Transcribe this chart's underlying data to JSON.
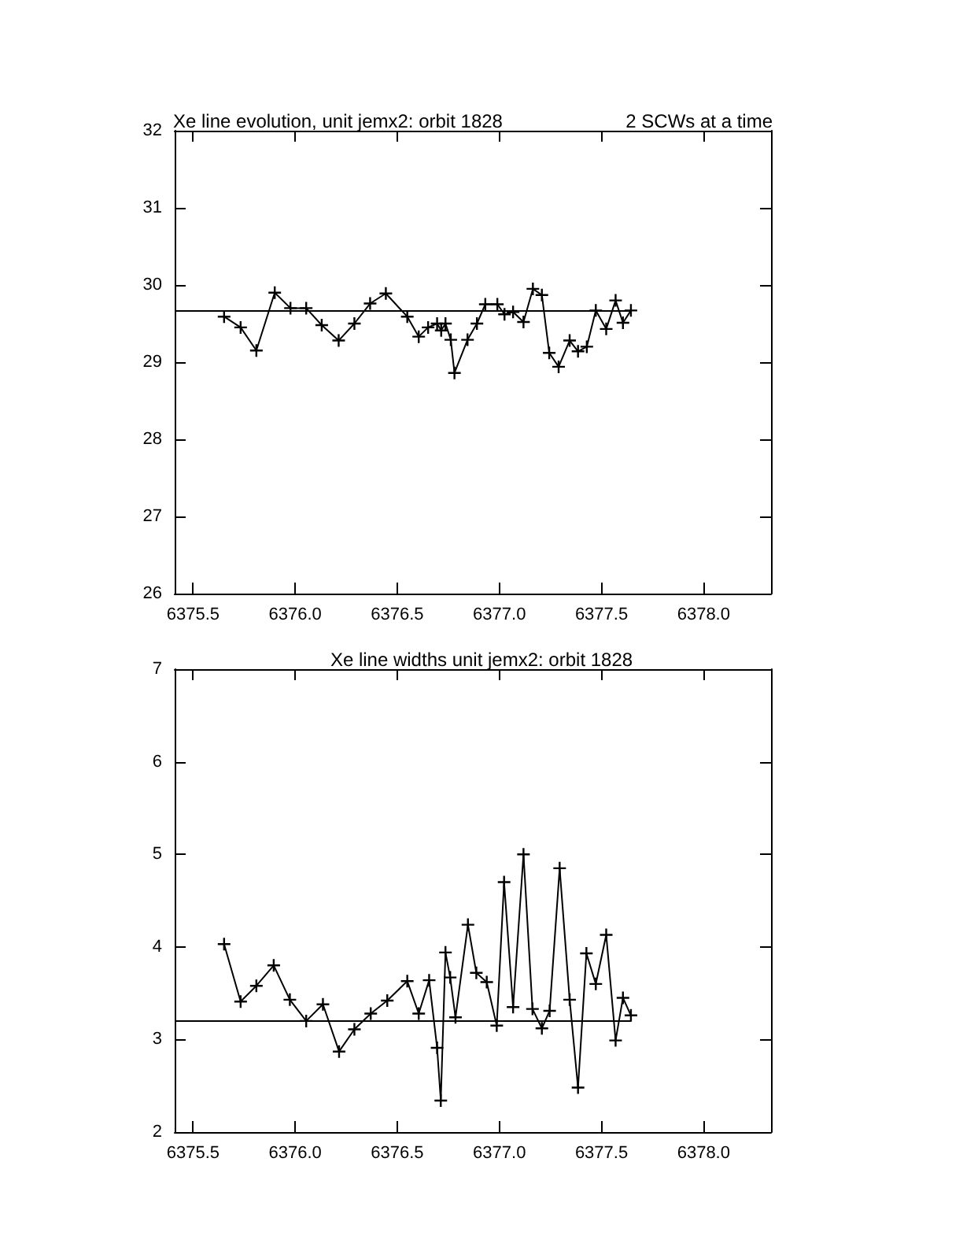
{
  "chart_data": [
    {
      "type": "line",
      "title": "Xe line evolution, unit jemx2: orbit 1828",
      "subtitle": "2 SCWs at a time",
      "marker": "cross",
      "line_style": "solid",
      "x": [
        6375.652,
        6375.733,
        6375.81,
        6375.9,
        6375.977,
        6376.054,
        6376.13,
        6376.213,
        6376.29,
        6376.367,
        6376.444,
        6376.549,
        6376.605,
        6376.651,
        6376.695,
        6376.715,
        6376.736,
        6376.762,
        6376.78,
        6376.844,
        6376.89,
        6376.931,
        6376.99,
        6377.025,
        6377.067,
        6377.118,
        6377.164,
        6377.208,
        6377.244,
        6377.29,
        6377.344,
        6377.385,
        6377.428,
        6377.472,
        6377.523,
        6377.569,
        6377.605,
        6377.644
      ],
      "series": [
        {
          "color": "#000000",
          "values": [
            29.59,
            29.45,
            29.15,
            29.9,
            29.7,
            29.7,
            29.48,
            29.28,
            29.5,
            29.76,
            29.89,
            29.59,
            29.33,
            29.45,
            29.5,
            29.41,
            29.5,
            29.29,
            28.86,
            29.29,
            29.5,
            29.75,
            29.75,
            29.62,
            29.65,
            29.52,
            29.95,
            29.87,
            29.12,
            28.94,
            29.28,
            29.14,
            29.2,
            29.67,
            29.43,
            29.8,
            29.51,
            29.67
          ]
        }
      ],
      "ref_lines": [
        {
          "axis": "y",
          "value": 29.67,
          "color": "#000000"
        }
      ],
      "xlim": [
        6375.41,
        6378.33
      ],
      "xticks": [
        {
          "value": 6375.5,
          "label": "6375.5"
        },
        {
          "value": 6376,
          "label": "6376.0"
        },
        {
          "value": 6376.5,
          "label": "6376.5"
        },
        {
          "value": 6377,
          "label": "6377.0"
        },
        {
          "value": 6377.5,
          "label": "6377.5"
        },
        {
          "value": 6378,
          "label": "6378.0"
        }
      ],
      "ylim": [
        26,
        32
      ],
      "yticks": [
        26,
        27,
        28,
        29,
        30,
        31,
        32
      ]
    },
    {
      "type": "line",
      "title": "Xe line widths unit jemx2: orbit 1828",
      "marker": "cross",
      "line_style": "solid",
      "x": [
        6375.652,
        6375.733,
        6375.81,
        6375.895,
        6375.974,
        6376.054,
        6376.136,
        6376.215,
        6376.29,
        6376.37,
        6376.451,
        6376.549,
        6376.605,
        6376.656,
        6376.695,
        6376.713,
        6376.736,
        6376.759,
        6376.785,
        6376.846,
        6376.887,
        6376.938,
        6376.987,
        6377.023,
        6377.067,
        6377.118,
        6377.162,
        6377.208,
        6377.246,
        6377.295,
        6377.344,
        6377.385,
        6377.426,
        6377.472,
        6377.523,
        6377.569,
        6377.605,
        6377.644
      ],
      "series": [
        {
          "color": "#000000",
          "values": [
            4.03,
            3.41,
            3.58,
            3.8,
            3.43,
            3.2,
            3.38,
            2.87,
            3.11,
            3.28,
            3.42,
            3.63,
            3.28,
            3.64,
            2.91,
            2.34,
            3.94,
            3.67,
            3.24,
            4.24,
            3.72,
            3.62,
            3.15,
            4.7,
            3.35,
            5.0,
            3.33,
            3.12,
            3.31,
            4.85,
            3.43,
            2.48,
            3.93,
            3.6,
            4.13,
            2.99,
            3.45,
            3.26
          ]
        }
      ],
      "ref_lines": [
        {
          "axis": "y",
          "value": 3.21,
          "color": "#000000"
        }
      ],
      "xlim": [
        6375.41,
        6378.33
      ],
      "xticks": [
        {
          "value": 6375.5,
          "label": "6375.5"
        },
        {
          "value": 6376,
          "label": "6376.0"
        },
        {
          "value": 6376.5,
          "label": "6376.5"
        },
        {
          "value": 6377,
          "label": "6377.0"
        },
        {
          "value": 6377.5,
          "label": "6377.5"
        },
        {
          "value": 6378,
          "label": "6378.0"
        }
      ],
      "ylim": [
        2,
        7
      ],
      "yticks": [
        2,
        3,
        4,
        5,
        6,
        7
      ]
    }
  ]
}
